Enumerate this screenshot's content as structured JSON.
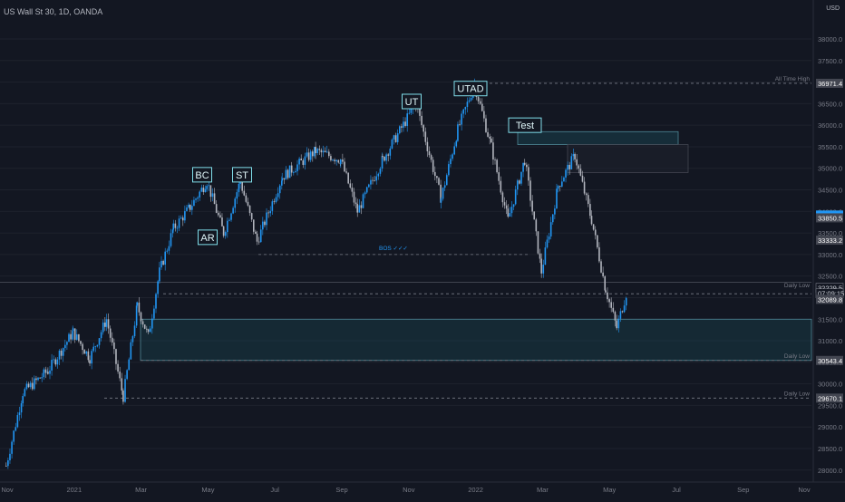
{
  "header": {
    "symbol": "US Wall St 30, 1D, OANDA",
    "currency": "USD"
  },
  "colors": {
    "background": "#131722",
    "candle": "#2196f3",
    "candle_alt": "#b2b5be",
    "grid": "#1e222d",
    "zone": "#1b4a57",
    "label_box": "#80deea",
    "price_text": "#787b86"
  },
  "price_axis": {
    "ticks": [
      "38000.0",
      "37500.0",
      "37000.0",
      "36500.0",
      "36000.0",
      "35500.0",
      "35000.0",
      "34500.0",
      "34000.0",
      "33500.0",
      "33000.0",
      "32500.0",
      "32000.0",
      "31500.0",
      "31000.0",
      "30500.0",
      "30000.0",
      "29500.0",
      "29000.0",
      "28500.0",
      "28000.0"
    ],
    "tick_values": [
      38000,
      37500,
      37000,
      36500,
      36000,
      35500,
      35000,
      34500,
      34000,
      33500,
      33000,
      32500,
      32000,
      31500,
      31000,
      30500,
      30000,
      29500,
      29000,
      28500,
      28000
    ],
    "badges": [
      {
        "text": "36971.4",
        "value": 36971.4,
        "style": "grey"
      },
      {
        "text": "33916.1",
        "value": 33916.1,
        "style": "blue"
      },
      {
        "text": "33850.5",
        "value": 33850.5,
        "style": "grey"
      },
      {
        "text": "33333.2",
        "value": 33333.2,
        "style": "grey"
      },
      {
        "text": "32229.5",
        "value": 32229.5,
        "style": "white"
      },
      {
        "text": "07:09:15",
        "value": 32100,
        "style": "white"
      },
      {
        "text": "32089.8",
        "value": 31960,
        "style": "grey"
      },
      {
        "text": "30543.4",
        "value": 30543.4,
        "style": "grey"
      },
      {
        "text": "29670.1",
        "value": 29670.1,
        "style": "grey"
      }
    ]
  },
  "time_axis": {
    "labels": [
      "Nov",
      "2021",
      "Mar",
      "May",
      "Jul",
      "Sep",
      "Nov",
      "2022",
      "Mar",
      "May",
      "Jul",
      "Sep",
      "Nov"
    ]
  },
  "annotations": {
    "wyckoff": [
      {
        "text": "BC",
        "value": 34850
      },
      {
        "text": "AR",
        "value": 33400
      },
      {
        "text": "ST",
        "value": 34850
      },
      {
        "text": "UT",
        "value": 36550
      },
      {
        "text": "UTAD",
        "value": 36850
      },
      {
        "text": "Test",
        "value": 36000
      }
    ],
    "bos_label": "BOS ✓✓✓",
    "level_labels": {
      "ath": "All Time High",
      "daily_low_1": "Daily Low",
      "daily_low_2": "Daily Low",
      "daily_low_3": "Daily Low"
    }
  },
  "chart_data": {
    "type": "candlestick",
    "title": "US Wall St 30, 1D, OANDA",
    "ylim": [
      28000,
      38400
    ],
    "x_range": [
      "Nov 2020",
      "Nov 2022"
    ],
    "levels": [
      {
        "name": "All Time High",
        "value": 36971.4
      },
      {
        "name": "BOS",
        "value": 33000
      },
      {
        "name": "Daily Low",
        "value": 32089.8
      },
      {
        "name": "Daily Low",
        "value": 30543.4
      },
      {
        "name": "Daily Low",
        "value": 29670.1
      },
      {
        "name": "Current",
        "value": 32229.5
      }
    ],
    "zones": [
      {
        "from": 30543.4,
        "to": 31500
      },
      {
        "from": 35550,
        "to": 35850
      },
      {
        "from": 34900,
        "to": 35550
      }
    ],
    "path": [
      [
        "Nov 2020",
        28100
      ],
      [
        "Nov 2020",
        29800
      ],
      [
        "Dec 2020",
        30300
      ],
      [
        "Jan 2021",
        31200
      ],
      [
        "Jan 2021",
        30600
      ],
      [
        "Feb 2021",
        31500
      ],
      [
        "Feb 2021",
        29700
      ],
      [
        "Mar 2021",
        31800
      ],
      [
        "Mar 2021",
        31100
      ],
      [
        "Mar 2021",
        32600
      ],
      [
        "Apr 2021",
        33600
      ],
      [
        "Apr 2021",
        34100
      ],
      [
        "May 2021",
        34700
      ],
      [
        "May 2021",
        33500
      ],
      [
        "Jun 2021",
        34700
      ],
      [
        "Jun 2021",
        33300
      ],
      [
        "Jul 2021",
        34800
      ],
      [
        "Aug 2021",
        35400
      ],
      [
        "Sep 2021",
        35200
      ],
      [
        "Sep 2021",
        34000
      ],
      [
        "Oct 2021",
        35200
      ],
      [
        "Nov 2021",
        36500
      ],
      [
        "Dec 2021",
        34300
      ],
      [
        "Dec 2021",
        35900
      ],
      [
        "Jan 2022",
        36950
      ],
      [
        "Jan 2022",
        35500
      ],
      [
        "Feb 2022",
        33800
      ],
      [
        "Feb 2022",
        35200
      ],
      [
        "Mar 2022",
        32600
      ],
      [
        "Mar 2022",
        34600
      ],
      [
        "Apr 2022",
        35300
      ],
      [
        "Apr 2022",
        33800
      ],
      [
        "May 2022",
        32200
      ],
      [
        "May 2022",
        31300
      ],
      [
        "May 2022",
        32229.5
      ]
    ]
  }
}
